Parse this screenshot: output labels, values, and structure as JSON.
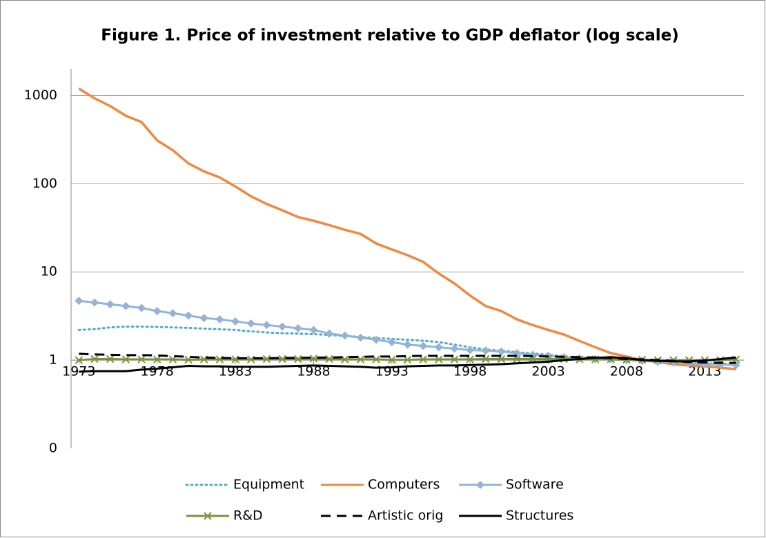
{
  "chart_data": {
    "type": "line",
    "title": "Figure 1. Price of investment relative to GDP deflator (log scale)",
    "x": [
      1973,
      1974,
      1975,
      1976,
      1977,
      1978,
      1979,
      1980,
      1981,
      1982,
      1983,
      1984,
      1985,
      1986,
      1987,
      1988,
      1989,
      1990,
      1991,
      1992,
      1993,
      1994,
      1995,
      1996,
      1997,
      1998,
      1999,
      2000,
      2001,
      2002,
      2003,
      2004,
      2005,
      2006,
      2007,
      2008,
      2009,
      2010,
      2011,
      2012,
      2013,
      2014,
      2015
    ],
    "xlim": [
      1972.5,
      2015.5
    ],
    "xticks": [
      1973,
      1978,
      1983,
      1988,
      1993,
      1998,
      2003,
      2008,
      2013
    ],
    "ylim": [
      0.1,
      2000
    ],
    "yticks": [
      {
        "value": 0.1,
        "label": "0"
      },
      1,
      10,
      100,
      1000
    ],
    "log": true,
    "grid": true,
    "series": [
      {
        "name": "Equipment",
        "color": "#4bacc6",
        "style": "dotted",
        "values": [
          2.2,
          2.25,
          2.35,
          2.4,
          2.4,
          2.38,
          2.35,
          2.32,
          2.28,
          2.24,
          2.2,
          2.12,
          2.06,
          2.02,
          2.0,
          1.97,
          1.93,
          1.88,
          1.83,
          1.78,
          1.74,
          1.7,
          1.66,
          1.6,
          1.5,
          1.4,
          1.32,
          1.28,
          1.23,
          1.19,
          1.15,
          1.1,
          1.07,
          1.05,
          1.03,
          1.01,
          1.0,
          0.98,
          0.96,
          0.94,
          0.92,
          0.91,
          0.9
        ]
      },
      {
        "name": "Computers",
        "color": "#f0883e",
        "style": "solid",
        "values": [
          1200,
          930,
          760,
          590,
          500,
          310,
          240,
          170,
          138,
          118,
          93,
          72,
          59,
          50,
          42,
          38,
          34,
          30,
          27,
          21,
          18,
          15.5,
          13,
          9.6,
          7.4,
          5.4,
          4.1,
          3.6,
          2.9,
          2.5,
          2.2,
          1.95,
          1.65,
          1.4,
          1.2,
          1.1,
          1.0,
          0.95,
          0.9,
          0.87,
          0.85,
          0.82,
          0.79
        ]
      },
      {
        "name": "Software",
        "color": "#95b3d7",
        "style": "solid",
        "marker": "diamond",
        "values": [
          4.7,
          4.5,
          4.3,
          4.1,
          3.9,
          3.6,
          3.4,
          3.2,
          3.0,
          2.9,
          2.75,
          2.6,
          2.5,
          2.4,
          2.3,
          2.2,
          2.0,
          1.9,
          1.8,
          1.7,
          1.6,
          1.5,
          1.45,
          1.4,
          1.35,
          1.3,
          1.28,
          1.25,
          1.2,
          1.15,
          1.12,
          1.08,
          1.05,
          1.03,
          1.02,
          1.0,
          0.98,
          0.96,
          0.94,
          0.92,
          0.9,
          0.89,
          0.88
        ]
      },
      {
        "name": "R&D",
        "color": "#77933c",
        "style": "solid",
        "marker": "x",
        "values": [
          1.0,
          1.03,
          1.03,
          1.02,
          1.02,
          1.02,
          1.02,
          1.01,
          1.02,
          1.02,
          1.02,
          1.02,
          1.03,
          1.03,
          1.03,
          1.04,
          1.03,
          1.02,
          1.02,
          1.02,
          1.01,
          1.01,
          1.02,
          1.02,
          1.02,
          1.02,
          1.03,
          1.03,
          1.03,
          1.03,
          1.03,
          1.03,
          1.02,
          1.02,
          1.02,
          1.01,
          1.01,
          1.0,
          1.0,
          1.0,
          1.0,
          1.0,
          1.02
        ]
      },
      {
        "name": "Artistic orig",
        "color": "#000000",
        "style": "dashed",
        "values": [
          1.18,
          1.16,
          1.15,
          1.14,
          1.14,
          1.13,
          1.11,
          1.09,
          1.07,
          1.06,
          1.05,
          1.05,
          1.05,
          1.06,
          1.06,
          1.07,
          1.07,
          1.08,
          1.09,
          1.1,
          1.1,
          1.11,
          1.12,
          1.12,
          1.12,
          1.12,
          1.12,
          1.12,
          1.12,
          1.11,
          1.1,
          1.09,
          1.08,
          1.07,
          1.05,
          1.03,
          1.02,
          1.0,
          0.98,
          0.95,
          0.94,
          0.93,
          0.93
        ]
      },
      {
        "name": "Structures",
        "color": "#000000",
        "style": "solid",
        "values": [
          0.74,
          0.75,
          0.75,
          0.75,
          0.78,
          0.8,
          0.83,
          0.86,
          0.85,
          0.85,
          0.84,
          0.84,
          0.84,
          0.85,
          0.86,
          0.87,
          0.86,
          0.85,
          0.84,
          0.82,
          0.83,
          0.85,
          0.86,
          0.87,
          0.87,
          0.88,
          0.89,
          0.9,
          0.92,
          0.94,
          0.96,
          1.0,
          1.03,
          1.06,
          1.08,
          1.05,
          1.0,
          0.98,
          0.97,
          0.97,
          0.99,
          1.03,
          1.07
        ]
      }
    ]
  }
}
